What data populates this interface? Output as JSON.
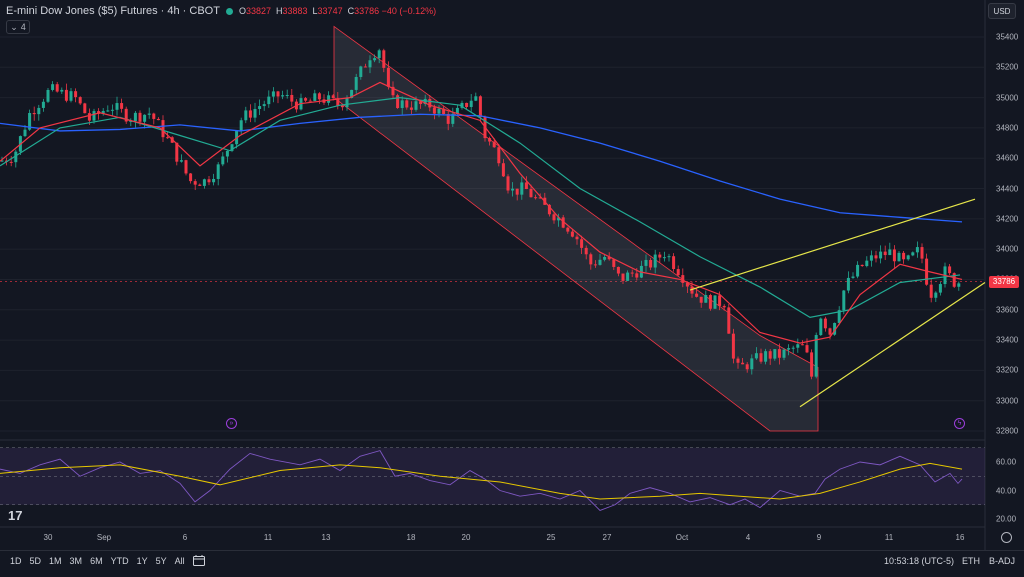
{
  "header": {
    "symbol": "E-mini Dow Jones ($5) Futures · 4h · CBOT",
    "o_label": "O",
    "o": "33827",
    "h_label": "H",
    "h": "33883",
    "l_label": "L",
    "l": "33747",
    "c_label": "C",
    "c": "33786 −40 (−0.12%)",
    "collapse_count": "4"
  },
  "currency_button": "USD",
  "last_price_tag": "33786",
  "timeframes": [
    "1D",
    "5D",
    "1M",
    "3M",
    "6M",
    "YTD",
    "1Y",
    "5Y",
    "All"
  ],
  "status": {
    "time": "10:53:18 (UTC-5)",
    "session": "ETH",
    "adj": "B-ADJ"
  },
  "icons": [
    "chevron-down-icon",
    "calendar-range-icon",
    "settings-icon",
    "arrow-right-circle-icon",
    "lightning-circle-icon",
    "tradingview-logo"
  ],
  "colors": {
    "up": "#22ab94",
    "down": "#f23645",
    "ema_short": "#f23645",
    "ema_mid": "#22ab94",
    "ema_long": "#2962ff",
    "rsi": "#7e57c2",
    "rsi_ma": "#e6c700",
    "channel_fill": "#2a2e39",
    "wedge": "#e6e64a"
  },
  "chart_data": [
    {
      "type": "candlestick",
      "title": "E-mini Dow Jones ($5) Futures · 4h · CBOT",
      "y_ticks": [
        35400,
        35200,
        35000,
        34800,
        34600,
        34400,
        34200,
        34000,
        33800,
        33600,
        33400,
        33200,
        33000,
        32800
      ],
      "ylim": [
        32800,
        35500
      ],
      "x_ticks": [
        "30",
        "Sep",
        "6",
        "11",
        "13",
        "18",
        "20",
        "25",
        "27",
        "Oct",
        "4",
        "9",
        "11",
        "16"
      ],
      "price_points": [
        [
          0,
          34580
        ],
        [
          14,
          34620
        ],
        [
          30,
          34900
        ],
        [
          50,
          35050
        ],
        [
          75,
          35000
        ],
        [
          90,
          34850
        ],
        [
          110,
          34950
        ],
        [
          130,
          34870
        ],
        [
          150,
          34900
        ],
        [
          170,
          34700
        ],
        [
          190,
          34450
        ],
        [
          205,
          34450
        ],
        [
          220,
          34550
        ],
        [
          240,
          34850
        ],
        [
          260,
          34950
        ],
        [
          280,
          35020
        ],
        [
          300,
          34950
        ],
        [
          320,
          35000
        ],
        [
          340,
          34950
        ],
        [
          355,
          35100
        ],
        [
          370,
          35280
        ],
        [
          380,
          35330
        ],
        [
          390,
          34980
        ],
        [
          410,
          34950
        ],
        [
          430,
          34950
        ],
        [
          450,
          34850
        ],
        [
          465,
          34950
        ],
        [
          475,
          35020
        ],
        [
          485,
          34750
        ],
        [
          500,
          34600
        ],
        [
          510,
          34380
        ],
        [
          525,
          34400
        ],
        [
          540,
          34300
        ],
        [
          560,
          34200
        ],
        [
          575,
          34100
        ],
        [
          590,
          33900
        ],
        [
          605,
          33950
        ],
        [
          620,
          33800
        ],
        [
          635,
          33850
        ],
        [
          650,
          33900
        ],
        [
          665,
          33980
        ],
        [
          680,
          33850
        ],
        [
          695,
          33700
        ],
        [
          710,
          33650
        ],
        [
          725,
          33650
        ],
        [
          735,
          33200
        ],
        [
          750,
          33250
        ],
        [
          765,
          33300
        ],
        [
          780,
          33300
        ],
        [
          795,
          33350
        ],
        [
          805,
          33350
        ],
        [
          812,
          33150
        ],
        [
          818,
          33600
        ],
        [
          830,
          33450
        ],
        [
          845,
          33750
        ],
        [
          860,
          33880
        ],
        [
          875,
          33950
        ],
        [
          890,
          33980
        ],
        [
          905,
          33900
        ],
        [
          920,
          34000
        ],
        [
          930,
          33700
        ],
        [
          945,
          33850
        ],
        [
          955,
          33780
        ],
        [
          962,
          33786
        ]
      ],
      "ema_short": [
        [
          0,
          34580
        ],
        [
          40,
          34800
        ],
        [
          100,
          34900
        ],
        [
          160,
          34800
        ],
        [
          200,
          34550
        ],
        [
          240,
          34750
        ],
        [
          300,
          34960
        ],
        [
          350,
          35000
        ],
        [
          380,
          35100
        ],
        [
          430,
          34950
        ],
        [
          480,
          34850
        ],
        [
          520,
          34500
        ],
        [
          560,
          34200
        ],
        [
          600,
          33980
        ],
        [
          640,
          33850
        ],
        [
          680,
          33800
        ],
        [
          720,
          33700
        ],
        [
          760,
          33450
        ],
        [
          800,
          33380
        ],
        [
          830,
          33420
        ],
        [
          860,
          33700
        ],
        [
          900,
          33900
        ],
        [
          930,
          33850
        ],
        [
          962,
          33800
        ]
      ],
      "ema_mid": [
        [
          0,
          34550
        ],
        [
          60,
          34800
        ],
        [
          120,
          34870
        ],
        [
          180,
          34750
        ],
        [
          230,
          34650
        ],
        [
          280,
          34850
        ],
        [
          340,
          34950
        ],
        [
          400,
          35000
        ],
        [
          460,
          34950
        ],
        [
          520,
          34700
        ],
        [
          580,
          34400
        ],
        [
          640,
          34180
        ],
        [
          700,
          33950
        ],
        [
          760,
          33750
        ],
        [
          810,
          33550
        ],
        [
          850,
          33600
        ],
        [
          900,
          33780
        ],
        [
          960,
          33830
        ]
      ],
      "ema_long": [
        [
          0,
          34830
        ],
        [
          60,
          34780
        ],
        [
          120,
          34790
        ],
        [
          180,
          34820
        ],
        [
          240,
          34780
        ],
        [
          300,
          34830
        ],
        [
          360,
          34870
        ],
        [
          420,
          34890
        ],
        [
          480,
          34880
        ],
        [
          540,
          34800
        ],
        [
          600,
          34700
        ],
        [
          660,
          34580
        ],
        [
          720,
          34450
        ],
        [
          780,
          34330
        ],
        [
          840,
          34240
        ],
        [
          900,
          34210
        ],
        [
          962,
          34180
        ]
      ],
      "channel": [
        [
          [
            334,
            35470
          ],
          [
            760,
            33430
          ],
          [
            818,
            33220
          ],
          [
            818,
            32800
          ],
          [
            770,
            32800
          ],
          [
            334,
            35000
          ]
        ]
      ],
      "wedge_upper": [
        [
          690,
          33730
        ],
        [
          975,
          34330
        ]
      ],
      "wedge_lower": [
        [
          800,
          32960
        ],
        [
          985,
          33780
        ]
      ],
      "last_price": 33786
    },
    {
      "type": "line",
      "name": "RSI",
      "y_ticks": [
        60.0,
        40.0,
        20.0
      ],
      "levels": [
        70,
        50,
        30
      ],
      "ylim": [
        20,
        72
      ],
      "rsi": [
        [
          0,
          55
        ],
        [
          20,
          52
        ],
        [
          40,
          58
        ],
        [
          60,
          62
        ],
        [
          80,
          50
        ],
        [
          100,
          56
        ],
        [
          120,
          60
        ],
        [
          140,
          52
        ],
        [
          160,
          54
        ],
        [
          180,
          45
        ],
        [
          195,
          32
        ],
        [
          210,
          40
        ],
        [
          230,
          55
        ],
        [
          250,
          66
        ],
        [
          270,
          62
        ],
        [
          300,
          58
        ],
        [
          320,
          62
        ],
        [
          340,
          54
        ],
        [
          360,
          64
        ],
        [
          380,
          68
        ],
        [
          395,
          50
        ],
        [
          410,
          52
        ],
        [
          430,
          47
        ],
        [
          450,
          44
        ],
        [
          470,
          54
        ],
        [
          485,
          48
        ],
        [
          500,
          40
        ],
        [
          520,
          36
        ],
        [
          540,
          38
        ],
        [
          560,
          34
        ],
        [
          580,
          40
        ],
        [
          600,
          26
        ],
        [
          615,
          30
        ],
        [
          630,
          38
        ],
        [
          650,
          42
        ],
        [
          670,
          38
        ],
        [
          690,
          32
        ],
        [
          710,
          35
        ],
        [
          730,
          30
        ],
        [
          745,
          34
        ],
        [
          760,
          28
        ],
        [
          780,
          40
        ],
        [
          800,
          36
        ],
        [
          815,
          38
        ],
        [
          825,
          48
        ],
        [
          840,
          55
        ],
        [
          860,
          60
        ],
        [
          880,
          58
        ],
        [
          900,
          64
        ],
        [
          920,
          58
        ],
        [
          935,
          46
        ],
        [
          950,
          52
        ],
        [
          958,
          45
        ],
        [
          962,
          48
        ]
      ],
      "rsi_ma": [
        [
          0,
          52
        ],
        [
          60,
          56
        ],
        [
          120,
          58
        ],
        [
          180,
          50
        ],
        [
          220,
          44
        ],
        [
          280,
          54
        ],
        [
          340,
          58
        ],
        [
          380,
          56
        ],
        [
          440,
          50
        ],
        [
          500,
          46
        ],
        [
          560,
          38
        ],
        [
          600,
          34
        ],
        [
          660,
          36
        ],
        [
          700,
          38
        ],
        [
          740,
          36
        ],
        [
          780,
          34
        ],
        [
          820,
          38
        ],
        [
          860,
          46
        ],
        [
          900,
          55
        ],
        [
          930,
          59
        ],
        [
          962,
          55
        ]
      ]
    }
  ]
}
